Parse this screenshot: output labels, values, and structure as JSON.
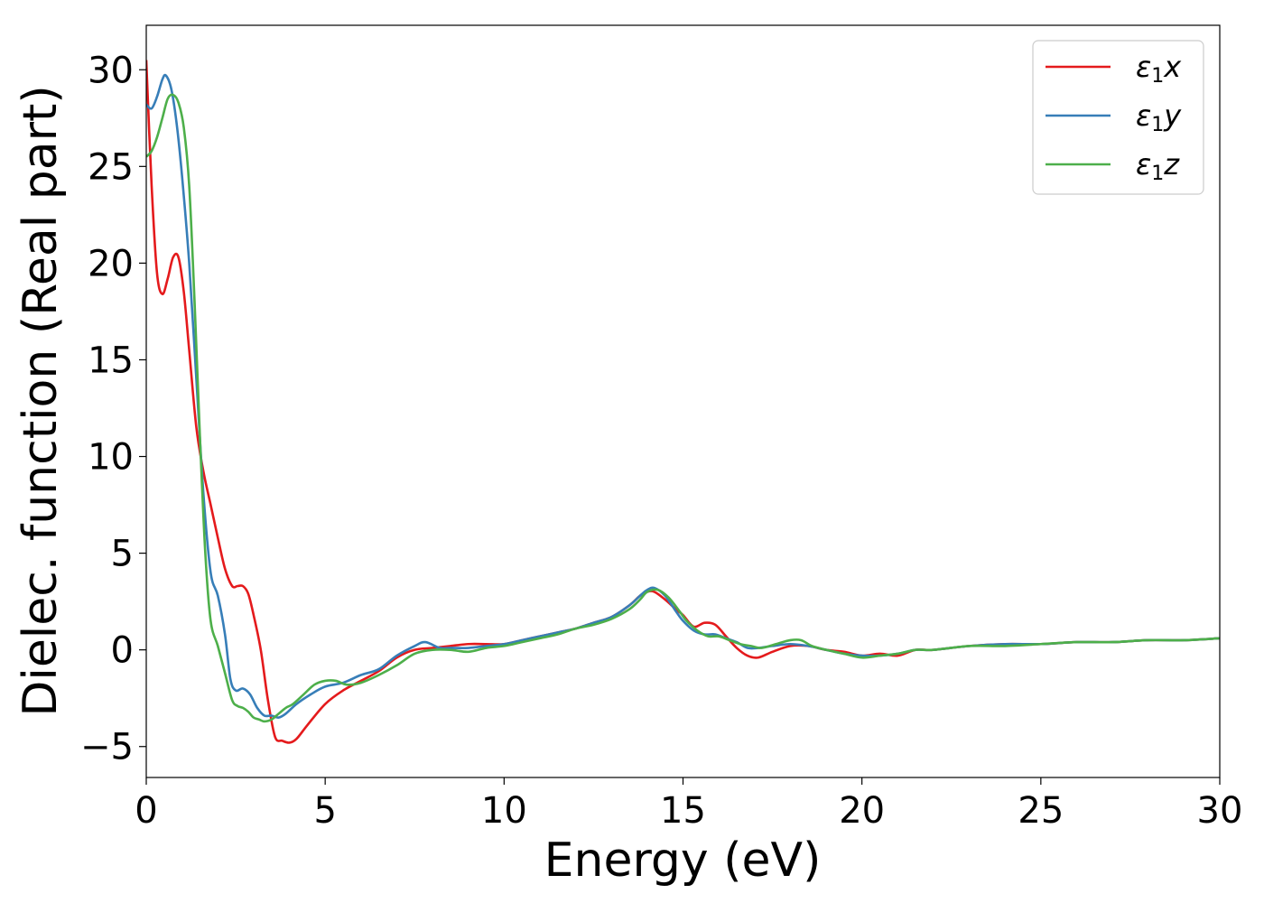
{
  "chart_data": {
    "type": "line",
    "title": "",
    "xlabel": "Energy (eV)",
    "ylabel": "Dielec. function (Real part)",
    "xlim": [
      0,
      30
    ],
    "ylim": [
      -6.6,
      32.3
    ],
    "xticks": [
      0,
      5,
      10,
      15,
      20,
      25,
      30
    ],
    "xtick_labels": [
      "0",
      "5",
      "10",
      "15",
      "20",
      "25",
      "30"
    ],
    "yticks": [
      -5,
      0,
      5,
      10,
      15,
      20,
      25,
      30
    ],
    "ytick_labels": [
      "−5",
      "0",
      "5",
      "10",
      "15",
      "20",
      "25",
      "30"
    ],
    "grid": false,
    "legend_position": "top-right",
    "series": [
      {
        "name": "ε1x",
        "label_main": "ε",
        "label_sub": "1",
        "label_end": "x",
        "color": "#e41a1c",
        "x": [
          0,
          0.15,
          0.3,
          0.45,
          0.6,
          0.75,
          0.9,
          1.05,
          1.2,
          1.4,
          1.6,
          1.8,
          2.0,
          2.2,
          2.4,
          2.55,
          2.7,
          2.85,
          3.0,
          3.2,
          3.4,
          3.6,
          3.8,
          4.0,
          4.2,
          4.5,
          5.0,
          5.5,
          6.0,
          6.5,
          7.0,
          7.5,
          8.0,
          8.5,
          9.0,
          9.5,
          10.0,
          10.5,
          11.0,
          11.5,
          12.0,
          12.5,
          13.0,
          13.5,
          13.8,
          14.0,
          14.2,
          14.5,
          14.8,
          15.0,
          15.3,
          15.6,
          15.9,
          16.2,
          16.5,
          16.8,
          17.1,
          17.5,
          18.0,
          18.5,
          19.0,
          19.5,
          20.0,
          20.5,
          21.0,
          21.5,
          22.0,
          23.0,
          24.0,
          25.0,
          26.0,
          27.0,
          28.0,
          29.0,
          30.0
        ],
        "values": [
          30.5,
          24.0,
          19.5,
          18.4,
          19.2,
          20.3,
          20.3,
          18.5,
          15.5,
          11.5,
          9.2,
          7.5,
          5.8,
          4.2,
          3.3,
          3.3,
          3.3,
          2.9,
          1.8,
          0.0,
          -2.6,
          -4.5,
          -4.7,
          -4.8,
          -4.6,
          -3.9,
          -2.8,
          -2.1,
          -1.6,
          -1.1,
          -0.4,
          0.0,
          0.1,
          0.2,
          0.3,
          0.3,
          0.3,
          0.5,
          0.7,
          0.9,
          1.1,
          1.4,
          1.7,
          2.3,
          2.8,
          3.0,
          3.0,
          2.6,
          2.1,
          1.8,
          1.2,
          1.4,
          1.3,
          0.7,
          0.1,
          -0.3,
          -0.4,
          -0.1,
          0.2,
          0.2,
          0.0,
          -0.1,
          -0.3,
          -0.2,
          -0.3,
          0.0,
          0.0,
          0.2,
          0.3,
          0.3,
          0.4,
          0.4,
          0.5,
          0.5,
          0.6
        ]
      },
      {
        "name": "ε1y",
        "label_main": "ε",
        "label_sub": "1",
        "label_end": "y",
        "color": "#377eb8",
        "x": [
          0,
          0.15,
          0.3,
          0.45,
          0.55,
          0.7,
          0.85,
          1.0,
          1.2,
          1.4,
          1.6,
          1.8,
          2.0,
          2.2,
          2.35,
          2.5,
          2.7,
          2.9,
          3.1,
          3.3,
          3.5,
          3.7,
          3.9,
          4.2,
          4.6,
          5.0,
          5.5,
          6.0,
          6.5,
          7.0,
          7.5,
          7.8,
          8.2,
          8.5,
          9.0,
          9.5,
          10.0,
          10.5,
          11.0,
          11.5,
          12.0,
          12.5,
          13.0,
          13.5,
          13.8,
          14.0,
          14.2,
          14.5,
          14.8,
          15.0,
          15.3,
          15.6,
          15.9,
          16.2,
          16.5,
          16.8,
          17.1,
          17.5,
          18.0,
          18.5,
          19.0,
          19.5,
          20.0,
          20.5,
          21.0,
          21.5,
          22.0,
          23.0,
          24.0,
          25.0,
          26.0,
          27.0,
          28.0,
          29.0,
          30.0
        ],
        "values": [
          28.2,
          28.0,
          28.6,
          29.5,
          29.7,
          29.0,
          27.2,
          24.5,
          20.0,
          14.0,
          8.0,
          4.0,
          2.8,
          0.8,
          -1.5,
          -2.1,
          -2.0,
          -2.3,
          -3.0,
          -3.4,
          -3.4,
          -3.5,
          -3.3,
          -2.8,
          -2.3,
          -1.9,
          -1.7,
          -1.3,
          -1.0,
          -0.3,
          0.2,
          0.4,
          0.1,
          0.1,
          0.1,
          0.2,
          0.3,
          0.5,
          0.7,
          0.9,
          1.1,
          1.4,
          1.7,
          2.3,
          2.8,
          3.1,
          3.2,
          2.8,
          2.0,
          1.5,
          1.0,
          0.8,
          0.8,
          0.6,
          0.4,
          0.1,
          0.1,
          0.2,
          0.3,
          0.2,
          0.0,
          -0.2,
          -0.3,
          -0.3,
          -0.2,
          0.0,
          0.0,
          0.2,
          0.3,
          0.3,
          0.4,
          0.4,
          0.5,
          0.5,
          0.6
        ]
      },
      {
        "name": "ε1z",
        "label_main": "ε",
        "label_sub": "1",
        "label_end": "z",
        "color": "#4daf4a",
        "x": [
          0,
          0.15,
          0.3,
          0.45,
          0.6,
          0.75,
          0.9,
          1.05,
          1.2,
          1.35,
          1.5,
          1.65,
          1.8,
          2.0,
          2.2,
          2.4,
          2.55,
          2.7,
          2.85,
          3.0,
          3.15,
          3.3,
          3.5,
          3.7,
          3.9,
          4.1,
          4.4,
          4.7,
          5.0,
          5.3,
          5.6,
          6.0,
          6.5,
          7.0,
          7.5,
          8.0,
          8.5,
          9.0,
          9.5,
          10.0,
          10.5,
          11.0,
          11.5,
          12.0,
          12.5,
          13.0,
          13.5,
          13.8,
          14.0,
          14.3,
          14.6,
          14.9,
          15.1,
          15.4,
          15.7,
          16.0,
          16.3,
          16.6,
          16.9,
          17.2,
          17.6,
          18.0,
          18.3,
          18.6,
          19.0,
          19.5,
          20.0,
          20.5,
          21.0,
          21.5,
          22.0,
          23.0,
          24.0,
          25.0,
          26.0,
          27.0,
          28.0,
          29.0,
          30.0
        ],
        "values": [
          25.5,
          25.8,
          26.5,
          27.5,
          28.5,
          28.7,
          28.3,
          27.0,
          24.0,
          18.0,
          11.0,
          5.0,
          1.5,
          0.2,
          -1.2,
          -2.6,
          -2.9,
          -3.0,
          -3.2,
          -3.5,
          -3.6,
          -3.7,
          -3.6,
          -3.3,
          -3.0,
          -2.8,
          -2.3,
          -1.8,
          -1.6,
          -1.6,
          -1.8,
          -1.7,
          -1.3,
          -0.8,
          -0.2,
          0.0,
          0.0,
          -0.1,
          0.1,
          0.2,
          0.4,
          0.6,
          0.8,
          1.1,
          1.3,
          1.6,
          2.1,
          2.6,
          3.0,
          3.1,
          2.7,
          2.0,
          1.5,
          1.0,
          0.7,
          0.7,
          0.5,
          0.3,
          0.2,
          0.1,
          0.3,
          0.5,
          0.5,
          0.2,
          0.0,
          -0.2,
          -0.4,
          -0.3,
          -0.2,
          0.0,
          0.0,
          0.2,
          0.2,
          0.3,
          0.4,
          0.4,
          0.5,
          0.5,
          0.6
        ]
      }
    ]
  }
}
